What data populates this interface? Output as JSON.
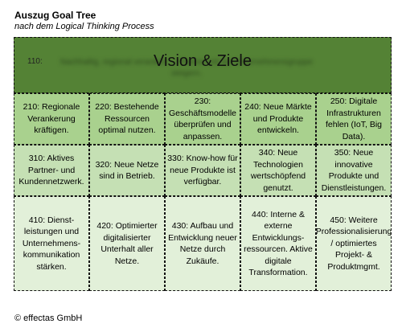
{
  "header": {
    "title": "Auszug Goal Tree",
    "subtitle": "nach dem Logical Thinking Process"
  },
  "vision": {
    "code": "110:",
    "title": "Vision & Ziele",
    "blurred_text": "Nachhaltig, regional verankert … Partner mit der Unternehmensgruppe steigern."
  },
  "rows": [
    [
      "210: Regionale Verankerung kräftigen.",
      "220: Bestehende Ressourcen optimal nutzen.",
      "230: Geschäftsmodelle überprüfen und anpassen.",
      "240: Neue Märkte und Produkte entwickeln.",
      "250: Digitale Infrastrukturen fehlen (IoT, Big Data)."
    ],
    [
      "310: Aktives Partner- und Kundennetzwerk.",
      "320: Neue Netze sind in Betrieb.",
      "330: Know-how für neue Produkte ist verfügbar.",
      "340: Neue Technologien wertschöpfend genutzt.",
      "350: Neue innovative Produkte und Dienstleistungen."
    ],
    [
      "410: Dienst-leistungen und Unternehmens-kommunikation stärken.",
      "420: Optimierter digitalisierter Unterhalt aller Netze.",
      "430: Aufbau und Entwicklung neuer Netze durch Zukäufe.",
      "440: Interne & externe Entwicklungs-ressourcen. Aktive digitale Transformation.",
      "450: Weitere Professionalisierung / optimiertes Projekt- & Produktmgmt."
    ]
  ],
  "footer": "© effectas GmbH",
  "colors": {
    "level1": "#548235",
    "level2": "#a9d18e",
    "level3": "#c5e0b4",
    "level4": "#e2f0d9"
  }
}
